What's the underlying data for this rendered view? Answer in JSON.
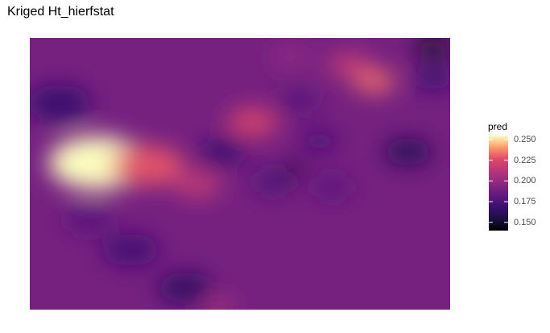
{
  "chart_data": {
    "type": "heatmap",
    "title": "Kriged Ht_hierfstat",
    "xlabel": "",
    "ylabel": "",
    "grid": false,
    "legend": {
      "title": "pred",
      "position": "right",
      "min": 0.14,
      "max": 0.255,
      "ticks": [
        "0.250",
        "0.225",
        "0.200",
        "0.175",
        "0.150"
      ],
      "tick_values": [
        0.25,
        0.225,
        0.2,
        0.175,
        0.15
      ]
    },
    "colorscale": "magma",
    "background_value": 0.19,
    "hotspots": [
      {
        "x": 0.16,
        "y": 0.46,
        "value": 0.255
      },
      {
        "x": 0.28,
        "y": 0.47,
        "value": 0.228
      },
      {
        "x": 0.4,
        "y": 0.54,
        "value": 0.215
      },
      {
        "x": 0.53,
        "y": 0.31,
        "value": 0.222
      },
      {
        "x": 0.76,
        "y": 0.1,
        "value": 0.215
      },
      {
        "x": 0.82,
        "y": 0.16,
        "value": 0.232
      },
      {
        "x": 0.96,
        "y": 0.04,
        "value": 0.148
      },
      {
        "x": 0.07,
        "y": 0.24,
        "value": 0.168
      },
      {
        "x": 0.96,
        "y": 0.15,
        "value": 0.17
      },
      {
        "x": 0.63,
        "y": 0.48,
        "value": 0.142
      },
      {
        "x": 0.46,
        "y": 0.42,
        "value": 0.17
      },
      {
        "x": 0.58,
        "y": 0.53,
        "value": 0.175
      },
      {
        "x": 0.69,
        "y": 0.38,
        "value": 0.172
      },
      {
        "x": 0.9,
        "y": 0.42,
        "value": 0.162
      },
      {
        "x": 0.24,
        "y": 0.78,
        "value": 0.172
      },
      {
        "x": 0.37,
        "y": 0.92,
        "value": 0.165
      },
      {
        "x": 0.45,
        "y": 0.99,
        "value": 0.205
      },
      {
        "x": 0.14,
        "y": 0.67,
        "value": 0.18
      },
      {
        "x": 0.72,
        "y": 0.55,
        "value": 0.18
      },
      {
        "x": 0.62,
        "y": 0.07,
        "value": 0.198
      },
      {
        "x": 0.64,
        "y": 0.23,
        "value": 0.178
      }
    ]
  }
}
